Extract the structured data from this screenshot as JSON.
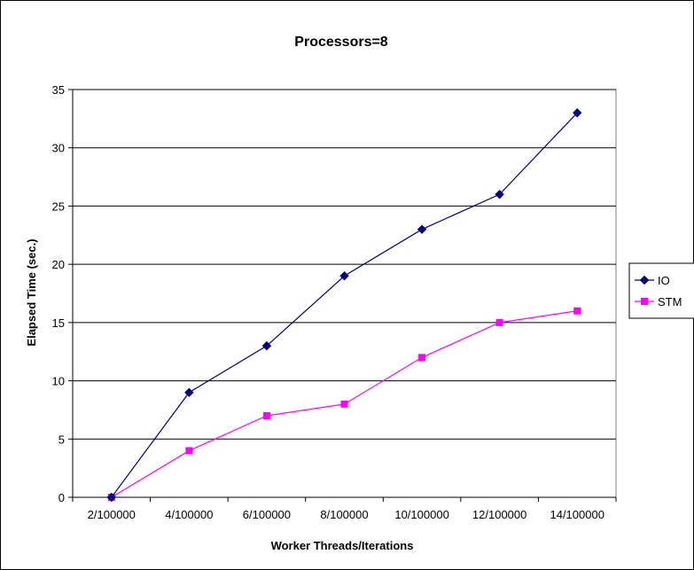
{
  "chart_data": {
    "type": "line",
    "title": "Processors=8",
    "xlabel": "Worker Threads/Iterations",
    "ylabel": "Elapsed Time (sec.)",
    "categories": [
      "2/100000",
      "4/100000",
      "6/100000",
      "8/100000",
      "10/100000",
      "12/100000",
      "14/100000"
    ],
    "ylim": [
      0,
      35
    ],
    "yticks": [
      0,
      5,
      10,
      15,
      20,
      25,
      30,
      35
    ],
    "grid": true,
    "legend": "right",
    "series": [
      {
        "name": "IO",
        "values": [
          0,
          9,
          13,
          19,
          23,
          26,
          33
        ],
        "color": "#000080",
        "marker": "diamond"
      },
      {
        "name": "STM",
        "values": [
          0,
          4,
          7,
          8,
          12,
          15,
          16
        ],
        "color": "#ff00ff",
        "marker": "square"
      }
    ]
  }
}
